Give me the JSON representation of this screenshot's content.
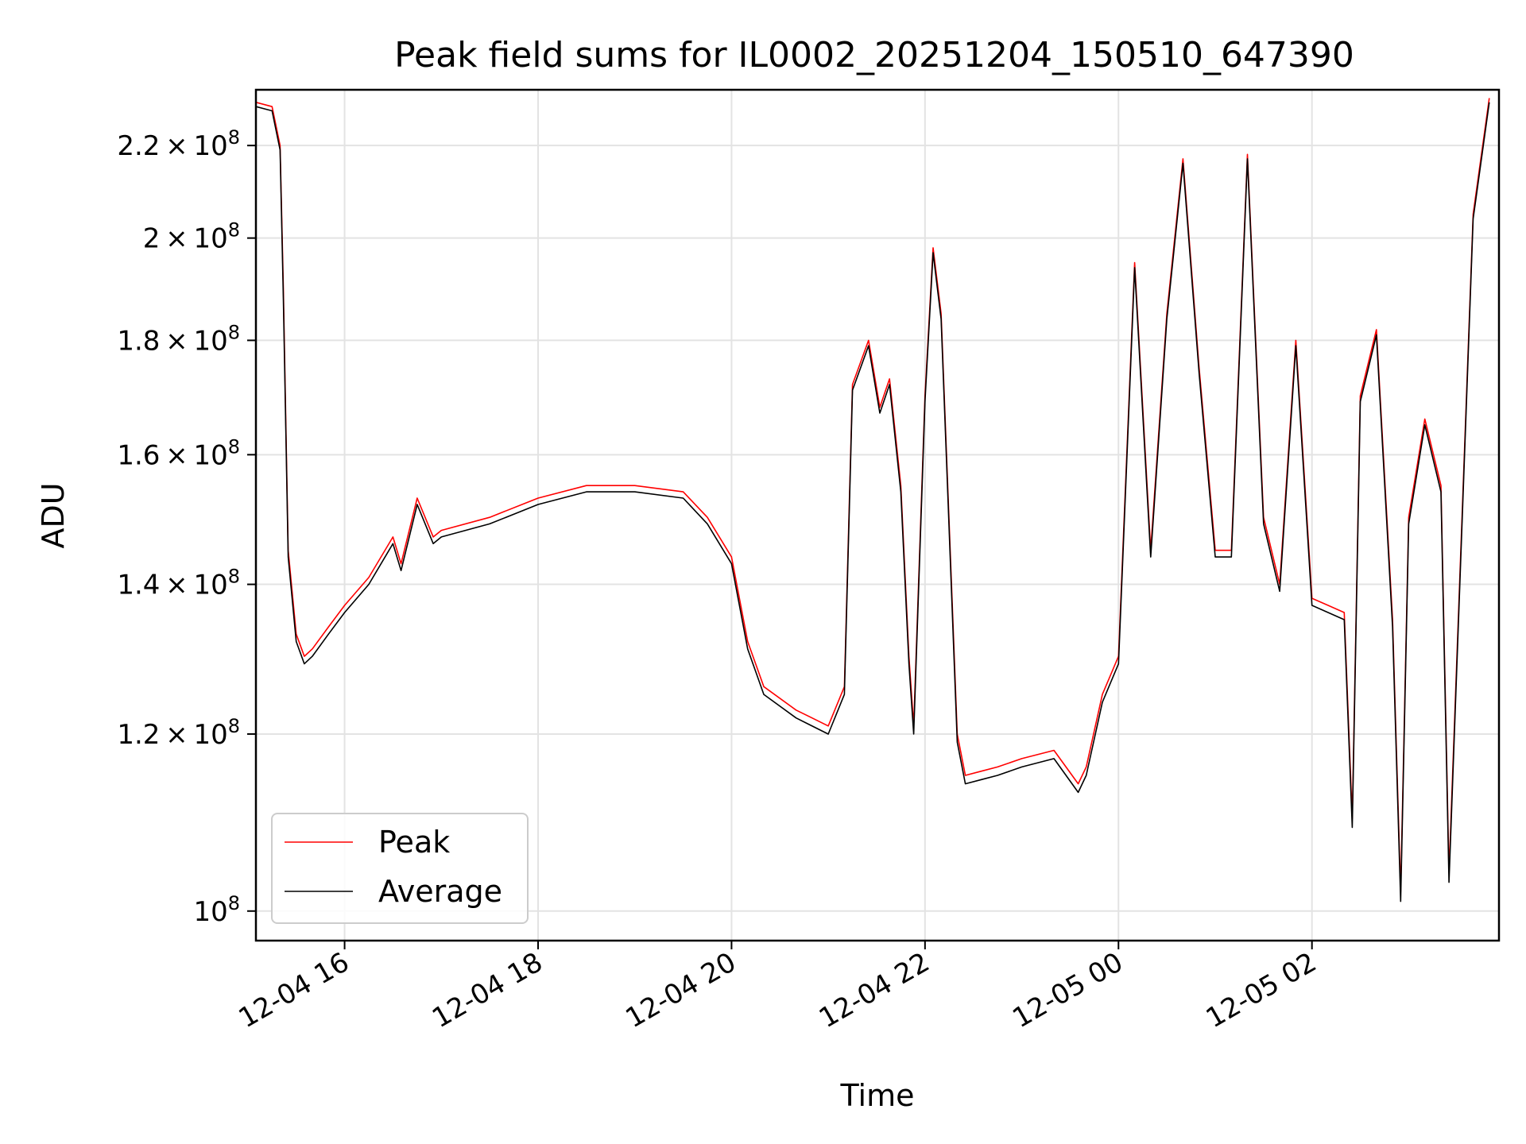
{
  "chart_data": {
    "type": "line",
    "title": "Peak field sums for IL0002_20251204_150510_647390",
    "xlabel": "Time",
    "ylabel": "ADU",
    "yscale": "log",
    "xlim": [
      "2025-12-04 15:05",
      "2025-12-05 03:56"
    ],
    "ylim": [
      97000000.0,
      233000000.0
    ],
    "grid": true,
    "legend_position": "lower-left",
    "x_ticks": [
      {
        "t": "2025-12-04 16:00",
        "label": "12-04 16"
      },
      {
        "t": "2025-12-04 18:00",
        "label": "12-04 18"
      },
      {
        "t": "2025-12-04 20:00",
        "label": "12-04 20"
      },
      {
        "t": "2025-12-04 22:00",
        "label": "12-04 22"
      },
      {
        "t": "2025-12-05 00:00",
        "label": "12-05 00"
      },
      {
        "t": "2025-12-05 02:00",
        "label": "12-05 02"
      }
    ],
    "y_ticks": [
      {
        "value": 100000000.0,
        "mantissa": "",
        "exponent": "8",
        "label": "10^8"
      },
      {
        "value": 120000000.0,
        "mantissa": "1.2",
        "exponent": "8",
        "label": "1.2×10^8"
      },
      {
        "value": 140000000.0,
        "mantissa": "1.4",
        "exponent": "8",
        "label": "1.4×10^8"
      },
      {
        "value": 160000000.0,
        "mantissa": "1.6",
        "exponent": "8",
        "label": "1.6×10^8"
      },
      {
        "value": 180000000.0,
        "mantissa": "1.8",
        "exponent": "8",
        "label": "1.8×10^8"
      },
      {
        "value": 200000000.0,
        "mantissa": "2",
        "exponent": "8",
        "label": "2×10^8"
      },
      {
        "value": 220000000.0,
        "mantissa": "2.2",
        "exponent": "8",
        "label": "2.2×10^8"
      }
    ],
    "x": [
      "2025-12-04 15:05",
      "2025-12-04 15:15",
      "2025-12-04 15:20",
      "2025-12-04 15:22",
      "2025-12-04 15:25",
      "2025-12-04 15:30",
      "2025-12-04 15:35",
      "2025-12-04 15:40",
      "2025-12-04 15:50",
      "2025-12-04 16:00",
      "2025-12-04 16:15",
      "2025-12-04 16:30",
      "2025-12-04 16:35",
      "2025-12-04 16:45",
      "2025-12-04 16:55",
      "2025-12-04 17:00",
      "2025-12-04 17:30",
      "2025-12-04 18:00",
      "2025-12-04 18:30",
      "2025-12-04 19:00",
      "2025-12-04 19:30",
      "2025-12-04 19:45",
      "2025-12-04 20:00",
      "2025-12-04 20:10",
      "2025-12-04 20:20",
      "2025-12-04 20:40",
      "2025-12-04 21:00",
      "2025-12-04 21:10",
      "2025-12-04 21:15",
      "2025-12-04 21:25",
      "2025-12-04 21:32",
      "2025-12-04 21:38",
      "2025-12-04 21:45",
      "2025-12-04 21:50",
      "2025-12-04 21:53",
      "2025-12-04 22:00",
      "2025-12-04 22:05",
      "2025-12-04 22:10",
      "2025-12-04 22:20",
      "2025-12-04 22:25",
      "2025-12-04 22:35",
      "2025-12-04 22:45",
      "2025-12-04 23:00",
      "2025-12-04 23:20",
      "2025-12-04 23:35",
      "2025-12-04 23:40",
      "2025-12-04 23:50",
      "2025-12-05 00:00",
      "2025-12-05 00:10",
      "2025-12-05 00:20",
      "2025-12-05 00:30",
      "2025-12-05 00:40",
      "2025-12-05 00:50",
      "2025-12-05 01:00",
      "2025-12-05 01:10",
      "2025-12-05 01:20",
      "2025-12-05 01:30",
      "2025-12-05 01:40",
      "2025-12-05 01:50",
      "2025-12-05 02:00",
      "2025-12-05 02:10",
      "2025-12-05 02:20",
      "2025-12-05 02:25",
      "2025-12-05 02:30",
      "2025-12-05 02:40",
      "2025-12-05 02:50",
      "2025-12-05 02:55",
      "2025-12-05 03:00",
      "2025-12-05 03:10",
      "2025-12-05 03:20",
      "2025-12-05 03:25",
      "2025-12-05 03:40",
      "2025-12-05 03:50"
    ],
    "series": [
      {
        "name": "Peak",
        "color": "#ff0000",
        "values": [
          230000000.0,
          229000000.0,
          220000000.0,
          190000000.0,
          145000000.0,
          133000000.0,
          130000000.0,
          131000000.0,
          134000000.0,
          137000000.0,
          141000000.0,
          147000000.0,
          143000000.0,
          153000000.0,
          147000000.0,
          148000000.0,
          150000000.0,
          153000000.0,
          155000000.0,
          155000000.0,
          154000000.0,
          150000000.0,
          144000000.0,
          132000000.0,
          126000000.0,
          123000000.0,
          121000000.0,
          126000000.0,
          172000000.0,
          180000000.0,
          168000000.0,
          173000000.0,
          155000000.0,
          130000000.0,
          121000000.0,
          170000000.0,
          198000000.0,
          185000000.0,
          120000000.0,
          115000000.0,
          115500000.0,
          116000000.0,
          117000000.0,
          118000000.0,
          114000000.0,
          116000000.0,
          125000000.0,
          130000000.0,
          195000000.0,
          145000000.0,
          185000000.0,
          217000000.0,
          175000000.0,
          145000000.0,
          145000000.0,
          218000000.0,
          150000000.0,
          140000000.0,
          180000000.0,
          138000000.0,
          137000000.0,
          136000000.0,
          110000000.0,
          170000000.0,
          182000000.0,
          135000000.0,
          102000000.0,
          150000000.0,
          166000000.0,
          155000000.0,
          104000000.0,
          205000000.0,
          231000000.0
        ]
      },
      {
        "name": "Average",
        "color": "#000000",
        "values": [
          229000000.0,
          228000000.0,
          219000000.0,
          188000000.0,
          144000000.0,
          132000000.0,
          129000000.0,
          130000000.0,
          133000000.0,
          136000000.0,
          140000000.0,
          146000000.0,
          142000000.0,
          152000000.0,
          146000000.0,
          147000000.0,
          149000000.0,
          152000000.0,
          154000000.0,
          154000000.0,
          153000000.0,
          149000000.0,
          143000000.0,
          131000000.0,
          125000000.0,
          122000000.0,
          120000000.0,
          125000000.0,
          171000000.0,
          179000000.0,
          167000000.0,
          172000000.0,
          154000000.0,
          129000000.0,
          120000000.0,
          169000000.0,
          197000000.0,
          184000000.0,
          119000000.0,
          114000000.0,
          114500000.0,
          115000000.0,
          116000000.0,
          117000000.0,
          113000000.0,
          115000000.0,
          124000000.0,
          129000000.0,
          194000000.0,
          144000000.0,
          184000000.0,
          216000000.0,
          174000000.0,
          144000000.0,
          144000000.0,
          217000000.0,
          149000000.0,
          139000000.0,
          179000000.0,
          137000000.0,
          136000000.0,
          135000000.0,
          109000000.0,
          169000000.0,
          181000000.0,
          134000000.0,
          101000000.0,
          149000000.0,
          165000000.0,
          154000000.0,
          103000000.0,
          204000000.0,
          230000000.0
        ]
      }
    ]
  }
}
